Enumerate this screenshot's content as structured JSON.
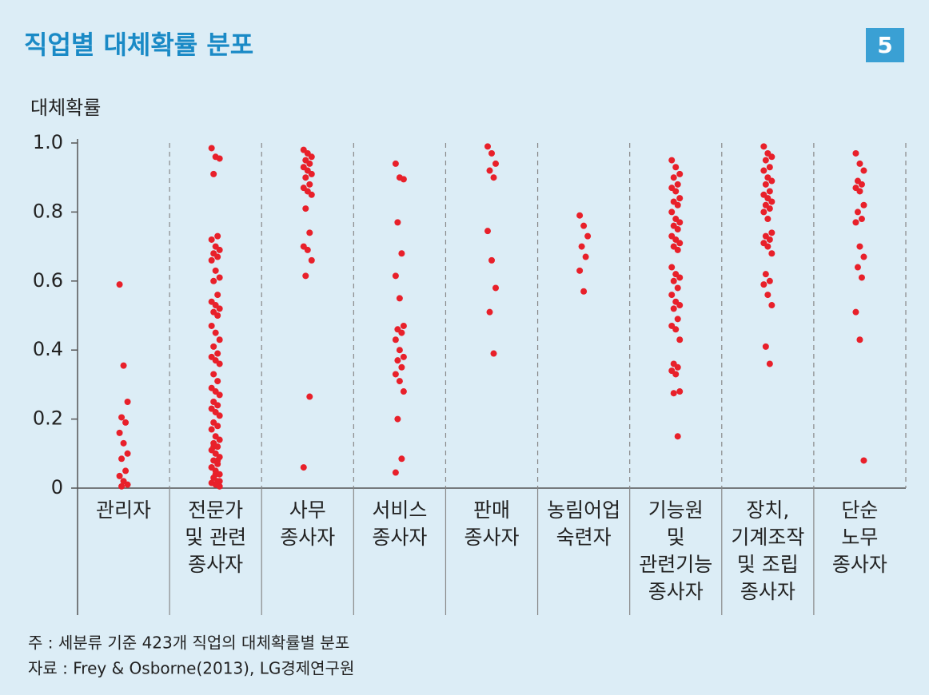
{
  "title": "직업별 대체확률 분포",
  "badge": "5",
  "chart_data": {
    "type": "strip",
    "y_label": "대체확률",
    "color": "#e8202a",
    "categories": [
      [
        "관리자"
      ],
      [
        "전문가",
        "및 관련",
        "종사자"
      ],
      [
        "사무",
        "종사자"
      ],
      [
        "서비스",
        "종사자"
      ],
      [
        "판매",
        "종사자"
      ],
      [
        "농림어업",
        "숙련자"
      ],
      [
        "기능원",
        "및",
        "관련기능",
        "종사자"
      ],
      [
        "장치,",
        "기계조작",
        "및 조립",
        "종사자"
      ],
      [
        "단순",
        "노무",
        "종사자"
      ]
    ],
    "values": [
      [
        0.59,
        0.355,
        0.25,
        0.205,
        0.19,
        0.16,
        0.13,
        0.1,
        0.085,
        0.05,
        0.035,
        0.02,
        0.01,
        0.005
      ],
      [
        0.985,
        0.96,
        0.955,
        0.91,
        0.73,
        0.72,
        0.7,
        0.69,
        0.68,
        0.67,
        0.66,
        0.63,
        0.61,
        0.6,
        0.56,
        0.54,
        0.53,
        0.52,
        0.51,
        0.5,
        0.47,
        0.45,
        0.43,
        0.41,
        0.39,
        0.38,
        0.37,
        0.36,
        0.33,
        0.31,
        0.29,
        0.28,
        0.27,
        0.25,
        0.24,
        0.23,
        0.22,
        0.21,
        0.19,
        0.18,
        0.17,
        0.15,
        0.14,
        0.13,
        0.12,
        0.11,
        0.1,
        0.09,
        0.08,
        0.07,
        0.06,
        0.05,
        0.04,
        0.03,
        0.02,
        0.015,
        0.01,
        0.005,
        0.12,
        0.08,
        0.06,
        0.04,
        0.02
      ],
      [
        0.98,
        0.97,
        0.96,
        0.95,
        0.94,
        0.93,
        0.92,
        0.91,
        0.9,
        0.88,
        0.87,
        0.86,
        0.85,
        0.81,
        0.74,
        0.7,
        0.69,
        0.66,
        0.615,
        0.265,
        0.06
      ],
      [
        0.94,
        0.9,
        0.895,
        0.77,
        0.68,
        0.615,
        0.55,
        0.47,
        0.46,
        0.45,
        0.43,
        0.4,
        0.38,
        0.37,
        0.35,
        0.33,
        0.31,
        0.28,
        0.2,
        0.085,
        0.045
      ],
      [
        0.99,
        0.97,
        0.94,
        0.92,
        0.9,
        0.745,
        0.66,
        0.58,
        0.51,
        0.39
      ],
      [
        0.79,
        0.76,
        0.73,
        0.7,
        0.67,
        0.63,
        0.57
      ],
      [
        0.95,
        0.93,
        0.91,
        0.9,
        0.88,
        0.87,
        0.86,
        0.84,
        0.83,
        0.82,
        0.8,
        0.78,
        0.77,
        0.76,
        0.75,
        0.73,
        0.72,
        0.71,
        0.7,
        0.69,
        0.64,
        0.62,
        0.61,
        0.6,
        0.58,
        0.56,
        0.54,
        0.53,
        0.52,
        0.49,
        0.47,
        0.46,
        0.43,
        0.36,
        0.35,
        0.34,
        0.33,
        0.28,
        0.275,
        0.15
      ],
      [
        0.99,
        0.97,
        0.96,
        0.95,
        0.93,
        0.92,
        0.9,
        0.89,
        0.88,
        0.86,
        0.85,
        0.84,
        0.83,
        0.82,
        0.81,
        0.8,
        0.78,
        0.74,
        0.73,
        0.72,
        0.71,
        0.7,
        0.68,
        0.62,
        0.6,
        0.59,
        0.56,
        0.53,
        0.41,
        0.36
      ],
      [
        0.97,
        0.94,
        0.92,
        0.89,
        0.88,
        0.87,
        0.86,
        0.82,
        0.8,
        0.78,
        0.77,
        0.7,
        0.67,
        0.64,
        0.61,
        0.51,
        0.43,
        0.08
      ]
    ],
    "ylim": [
      0,
      1
    ],
    "yticks": [
      0,
      0.2,
      0.4,
      0.6,
      0.8,
      {
        "value": 1,
        "label": "1.0"
      }
    ]
  },
  "notes": [
    "주 : 세분류 기준 423개 직업의 대체확률별 분포",
    "자료 : Frey & Osborne(2013), LG경제연구원"
  ]
}
